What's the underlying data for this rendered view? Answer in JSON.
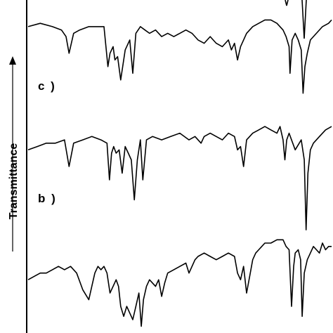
{
  "chart_data": {
    "type": "line",
    "ylabel": "Transmittance",
    "xlabel": "",
    "grid": false,
    "x_range": [
      0,
      100
    ],
    "y_range": [
      0,
      100
    ],
    "panel_labels": [
      "c )",
      "b )"
    ],
    "series": [
      {
        "label": "",
        "x": [
          0,
          4,
          8,
          11,
          12.5,
          13.5,
          15,
          17,
          20,
          23,
          25,
          26.3,
          27,
          28,
          28.6,
          29.5,
          30.5,
          32,
          33.5,
          34.5,
          35.5,
          37,
          38.5,
          40,
          42,
          44,
          46,
          48,
          50,
          52,
          54,
          56,
          58,
          60,
          62,
          64,
          66,
          67,
          68,
          69,
          70,
          72,
          74,
          76,
          78,
          80,
          82,
          84,
          85,
          86,
          86.3,
          87,
          88,
          89,
          90,
          90.6,
          91.2,
          92,
          93,
          95,
          97,
          99,
          100
        ],
        "y": [
          92,
          93,
          92,
          91,
          89,
          84,
          90,
          91,
          92,
          92,
          92,
          80,
          84,
          86,
          82,
          83,
          76,
          85,
          88,
          78,
          90,
          92,
          91,
          90,
          91,
          89,
          90,
          89,
          90,
          91,
          90,
          88,
          87,
          89,
          87,
          86,
          88,
          85,
          87,
          82,
          86,
          90,
          92,
          93,
          94,
          94,
          93,
          91,
          89,
          86,
          78,
          88,
          90,
          88,
          85,
          72,
          80,
          84,
          88,
          90,
          92,
          93,
          94
        ]
      },
      {
        "label": "",
        "x": [
          0,
          3,
          6,
          9,
          12,
          13.5,
          15,
          18,
          21,
          24,
          26,
          26.8,
          27.5,
          28.2,
          29,
          30,
          31,
          32,
          33,
          34,
          35,
          36,
          37,
          37.8,
          39,
          41,
          44,
          47,
          50,
          53,
          55,
          57,
          58,
          60,
          62,
          64,
          66,
          68,
          69,
          70,
          71,
          72,
          73,
          74,
          76,
          78,
          80,
          82,
          83,
          84,
          84.6,
          85.2,
          86,
          88,
          90,
          91,
          91.6,
          92.2,
          93,
          94,
          96,
          98,
          100
        ],
        "y": [
          55,
          56,
          57,
          57,
          58,
          50,
          57,
          58,
          59,
          58,
          57,
          46,
          54,
          56,
          54,
          55,
          48,
          56,
          54,
          52,
          40,
          52,
          58,
          46,
          58,
          59,
          58,
          59,
          60,
          58,
          59,
          57,
          59,
          60,
          59,
          58,
          60,
          59,
          55,
          56,
          50,
          58,
          59,
          60,
          61,
          62,
          61,
          60,
          62,
          58,
          52,
          58,
          60,
          55,
          58,
          52,
          31,
          48,
          55,
          57,
          59,
          61,
          62
        ]
      },
      {
        "label": "",
        "x": [
          0,
          2,
          4,
          6,
          8,
          10,
          12,
          14,
          16,
          18,
          20,
          21,
          22,
          23,
          24,
          25,
          26,
          27,
          28,
          29,
          29.8,
          30.5,
          31.5,
          32.5,
          33.5,
          34.5,
          35.5,
          36.5,
          37.3,
          38,
          39,
          40,
          42,
          43,
          44,
          45,
          46,
          48,
          50,
          52,
          53,
          55,
          56,
          58,
          60,
          62,
          64,
          66,
          68,
          69,
          70,
          71,
          72,
          73,
          74,
          75,
          76,
          77,
          78,
          80,
          82,
          84,
          85,
          86,
          86.8,
          87.5,
          88,
          89,
          89.8,
          90.3,
          91,
          92,
          93,
          94,
          95,
          96,
          97,
          98,
          99,
          100
        ],
        "y": [
          16,
          17,
          18,
          18,
          19,
          20,
          19,
          20,
          18,
          13,
          10,
          14,
          18,
          20,
          19,
          20,
          18,
          12,
          14,
          16,
          14,
          8,
          5,
          8,
          6,
          4,
          8,
          12,
          2,
          10,
          14,
          16,
          14,
          16,
          11,
          15,
          18,
          19,
          20,
          21,
          18,
          22,
          23,
          24,
          23,
          22,
          23,
          24,
          23,
          18,
          16,
          20,
          12,
          17,
          22,
          24,
          25,
          26,
          27,
          27,
          28,
          28,
          26,
          25,
          8,
          20,
          24,
          25,
          22,
          5,
          18,
          22,
          24,
          26,
          25,
          24,
          27,
          25,
          26,
          26
        ]
      }
    ]
  }
}
